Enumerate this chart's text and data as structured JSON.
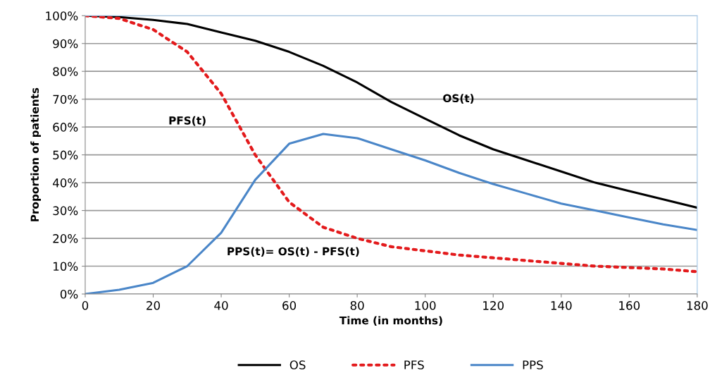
{
  "chart_data": {
    "type": "line",
    "xlabel": "Time (in months)",
    "ylabel": "Proportion of patients",
    "x": [
      0,
      10,
      20,
      30,
      40,
      50,
      60,
      70,
      80,
      90,
      100,
      110,
      120,
      130,
      140,
      150,
      160,
      170,
      180
    ],
    "series": [
      {
        "name": "OS",
        "color": "#000000",
        "line_style": "solid",
        "values": [
          100,
          99.5,
          98.5,
          97,
          94,
          91,
          87,
          82,
          76,
          69,
          63,
          57,
          52,
          48,
          44,
          40,
          37,
          34,
          31
        ]
      },
      {
        "name": "PFS",
        "color": "#e31a1c",
        "line_style": "dotted",
        "values": [
          100,
          99,
          95,
          87,
          72,
          50,
          33,
          24,
          20,
          17,
          15.5,
          14,
          13,
          12,
          11,
          10,
          9.5,
          9,
          8
        ]
      },
      {
        "name": "PPS",
        "color": "#4a86c8",
        "line_style": "solid",
        "values": [
          0,
          1.5,
          4,
          10,
          22,
          41,
          54,
          57.5,
          56,
          52,
          48,
          43.5,
          39.5,
          36,
          32.5,
          30,
          27.5,
          25,
          23
        ]
      }
    ],
    "xlim": [
      0,
      180
    ],
    "xticks": [
      0,
      20,
      40,
      60,
      80,
      100,
      120,
      140,
      160,
      180
    ],
    "ylim": [
      0,
      100
    ],
    "yticks": [
      {
        "value": 0,
        "label": "0%"
      },
      {
        "value": 10,
        "label": "10%"
      },
      {
        "value": 20,
        "label": "20%"
      },
      {
        "value": 30,
        "label": "30%"
      },
      {
        "value": 40,
        "label": "40%"
      },
      {
        "value": 50,
        "label": "50%"
      },
      {
        "value": 60,
        "label": "60%"
      },
      {
        "value": 70,
        "label": "70%"
      },
      {
        "value": 80,
        "label": "80%"
      },
      {
        "value": 90,
        "label": "90%"
      },
      {
        "value": 100,
        "label": "100%"
      }
    ],
    "annotations": [
      "OS(t)",
      "PFS(t)",
      "PPS(t)= OS(t) - PFS(t)"
    ],
    "grid": "y",
    "legend": "bottom",
    "marker": "none"
  }
}
